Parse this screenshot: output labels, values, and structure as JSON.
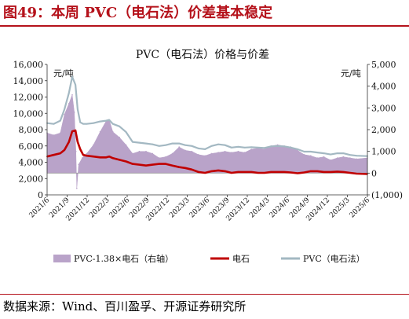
{
  "figure": {
    "title": "图49：本周 PVC（电石法）价差基本稳定",
    "source": "数据来源：Wind、百川盈孚、开源证券研究所"
  },
  "chart_data": {
    "type": "line",
    "title": "PVC（电石法）价格与价差",
    "y_left": {
      "unit_label": "元/吨",
      "ylim": [
        0,
        16000
      ],
      "ticks": [
        "0",
        "2,000",
        "4,000",
        "6,000",
        "8,000",
        "10,000",
        "12,000",
        "14,000",
        "16,000"
      ]
    },
    "y_right": {
      "unit_label": "元/吨",
      "ylim": [
        -1000,
        5000
      ],
      "ticks": [
        "(1,000)",
        "0",
        "1,000",
        "2,000",
        "3,000",
        "4,000",
        "5,000"
      ]
    },
    "x_ticks": [
      "2021/6",
      "2021/9",
      "2021/12",
      "2022/3",
      "2022/6",
      "2022/9",
      "2022/12",
      "2023/3",
      "2023/6",
      "2023/9",
      "2023/12",
      "2024/3",
      "2024/6",
      "2024/9",
      "2024/12",
      "2025/3",
      "2025/6"
    ],
    "x_range": [
      "2021-06-01",
      "2025-06-20"
    ],
    "grid": false,
    "legend_position": "bottom",
    "colors": {
      "spread": "#b9a3c9",
      "carbide": "#c00000",
      "pvc": "#a3b8c2"
    },
    "series": [
      {
        "name": "PVC-1.38×电石（右轴）",
        "kind": "area",
        "axis": "right",
        "points": [
          [
            "2021-06-01",
            1850
          ],
          [
            "2021-07-01",
            1750
          ],
          [
            "2021-08-01",
            1850
          ],
          [
            "2021-08-20",
            2700
          ],
          [
            "2021-09-10",
            3200
          ],
          [
            "2021-09-25",
            3600
          ],
          [
            "2021-10-05",
            2800
          ],
          [
            "2021-10-12",
            1000
          ],
          [
            "2021-10-16",
            -700
          ],
          [
            "2021-10-25",
            400
          ],
          [
            "2021-11-10",
            700
          ],
          [
            "2021-12-01",
            900
          ],
          [
            "2022-01-01",
            1300
          ],
          [
            "2022-02-01",
            1900
          ],
          [
            "2022-03-01",
            2400
          ],
          [
            "2022-03-15",
            2450
          ],
          [
            "2022-04-01",
            1900
          ],
          [
            "2022-05-01",
            1650
          ],
          [
            "2022-06-01",
            1300
          ],
          [
            "2022-07-01",
            900
          ],
          [
            "2022-08-01",
            1000
          ],
          [
            "2022-09-01",
            1000
          ],
          [
            "2022-10-01",
            900
          ],
          [
            "2022-11-01",
            700
          ],
          [
            "2022-12-01",
            750
          ],
          [
            "2023-01-01",
            900
          ],
          [
            "2023-02-01",
            1200
          ],
          [
            "2023-03-01",
            1050
          ],
          [
            "2023-04-01",
            1000
          ],
          [
            "2023-05-01",
            850
          ],
          [
            "2023-06-01",
            800
          ],
          [
            "2023-07-01",
            900
          ],
          [
            "2023-08-01",
            950
          ],
          [
            "2023-09-01",
            1000
          ],
          [
            "2023-10-01",
            950
          ],
          [
            "2023-11-01",
            1000
          ],
          [
            "2023-12-01",
            950
          ],
          [
            "2024-01-01",
            1100
          ],
          [
            "2024-02-01",
            1150
          ],
          [
            "2024-03-01",
            1100
          ],
          [
            "2024-04-01",
            1250
          ],
          [
            "2024-05-01",
            1300
          ],
          [
            "2024-06-01",
            1250
          ],
          [
            "2024-07-01",
            1200
          ],
          [
            "2024-08-01",
            1050
          ],
          [
            "2024-09-01",
            850
          ],
          [
            "2024-10-01",
            800
          ],
          [
            "2024-11-01",
            700
          ],
          [
            "2024-12-01",
            750
          ],
          [
            "2025-01-01",
            600
          ],
          [
            "2025-02-01",
            700
          ],
          [
            "2025-03-01",
            750
          ],
          [
            "2025-04-01",
            700
          ],
          [
            "2025-05-01",
            650
          ],
          [
            "2025-06-20",
            700
          ]
        ]
      },
      {
        "name": "电石",
        "kind": "line",
        "axis": "left",
        "points": [
          [
            "2021-06-01",
            4700
          ],
          [
            "2021-07-01",
            4900
          ],
          [
            "2021-08-01",
            5100
          ],
          [
            "2021-08-20",
            5500
          ],
          [
            "2021-09-10",
            6500
          ],
          [
            "2021-09-25",
            7800
          ],
          [
            "2021-10-10",
            7900
          ],
          [
            "2021-10-20",
            6500
          ],
          [
            "2021-11-01",
            5600
          ],
          [
            "2021-11-15",
            4900
          ],
          [
            "2021-12-01",
            4800
          ],
          [
            "2022-01-01",
            4700
          ],
          [
            "2022-02-01",
            4600
          ],
          [
            "2022-03-01",
            4600
          ],
          [
            "2022-03-15",
            4700
          ],
          [
            "2022-04-01",
            4500
          ],
          [
            "2022-05-01",
            4300
          ],
          [
            "2022-06-01",
            4100
          ],
          [
            "2022-07-01",
            3800
          ],
          [
            "2022-08-01",
            3700
          ],
          [
            "2022-09-01",
            3600
          ],
          [
            "2022-10-01",
            3700
          ],
          [
            "2022-11-01",
            3800
          ],
          [
            "2022-12-01",
            3800
          ],
          [
            "2023-01-01",
            3600
          ],
          [
            "2023-02-01",
            3400
          ],
          [
            "2023-03-01",
            3300
          ],
          [
            "2023-04-01",
            3100
          ],
          [
            "2023-05-01",
            2800
          ],
          [
            "2023-06-01",
            2700
          ],
          [
            "2023-07-01",
            2900
          ],
          [
            "2023-08-01",
            3000
          ],
          [
            "2023-09-01",
            2900
          ],
          [
            "2023-10-01",
            2700
          ],
          [
            "2023-11-01",
            2800
          ],
          [
            "2023-12-01",
            2800
          ],
          [
            "2024-01-01",
            2800
          ],
          [
            "2024-02-01",
            2700
          ],
          [
            "2024-03-01",
            2700
          ],
          [
            "2024-04-01",
            2800
          ],
          [
            "2024-05-01",
            2800
          ],
          [
            "2024-06-01",
            2800
          ],
          [
            "2024-07-01",
            2750
          ],
          [
            "2024-08-01",
            2650
          ],
          [
            "2024-09-01",
            2750
          ],
          [
            "2024-10-01",
            2900
          ],
          [
            "2024-11-01",
            2900
          ],
          [
            "2024-12-01",
            2800
          ],
          [
            "2025-01-01",
            2800
          ],
          [
            "2025-02-01",
            2850
          ],
          [
            "2025-03-01",
            2800
          ],
          [
            "2025-04-01",
            2700
          ],
          [
            "2025-05-01",
            2600
          ],
          [
            "2025-06-20",
            2550
          ]
        ]
      },
      {
        "name": "PVC（电石法）",
        "kind": "line",
        "axis": "left",
        "points": [
          [
            "2021-06-01",
            8800
          ],
          [
            "2021-07-01",
            8700
          ],
          [
            "2021-08-01",
            9100
          ],
          [
            "2021-08-20",
            10500
          ],
          [
            "2021-09-10",
            12500
          ],
          [
            "2021-09-25",
            14500
          ],
          [
            "2021-10-10",
            13500
          ],
          [
            "2021-10-20",
            10500
          ],
          [
            "2021-11-01",
            8900
          ],
          [
            "2021-11-15",
            8700
          ],
          [
            "2021-12-01",
            8700
          ],
          [
            "2022-01-01",
            8800
          ],
          [
            "2022-02-01",
            9000
          ],
          [
            "2022-03-01",
            9100
          ],
          [
            "2022-03-15",
            9200
          ],
          [
            "2022-04-01",
            8700
          ],
          [
            "2022-05-01",
            8400
          ],
          [
            "2022-06-01",
            7700
          ],
          [
            "2022-07-01",
            6500
          ],
          [
            "2022-08-01",
            6400
          ],
          [
            "2022-09-01",
            6300
          ],
          [
            "2022-10-01",
            6200
          ],
          [
            "2022-11-01",
            6000
          ],
          [
            "2022-12-01",
            6100
          ],
          [
            "2023-01-01",
            6300
          ],
          [
            "2023-02-01",
            6300
          ],
          [
            "2023-03-01",
            6100
          ],
          [
            "2023-04-01",
            6000
          ],
          [
            "2023-05-01",
            5700
          ],
          [
            "2023-06-01",
            5600
          ],
          [
            "2023-07-01",
            6000
          ],
          [
            "2023-08-01",
            6200
          ],
          [
            "2023-09-01",
            6100
          ],
          [
            "2023-10-01",
            5800
          ],
          [
            "2023-11-01",
            5900
          ],
          [
            "2023-12-01",
            5800
          ],
          [
            "2024-01-01",
            5850
          ],
          [
            "2024-02-01",
            5800
          ],
          [
            "2024-03-01",
            5750
          ],
          [
            "2024-04-01",
            5950
          ],
          [
            "2024-05-01",
            6000
          ],
          [
            "2024-06-01",
            5950
          ],
          [
            "2024-07-01",
            5800
          ],
          [
            "2024-08-01",
            5600
          ],
          [
            "2024-09-01",
            5300
          ],
          [
            "2024-10-01",
            5300
          ],
          [
            "2024-11-01",
            5200
          ],
          [
            "2024-12-01",
            5100
          ],
          [
            "2025-01-01",
            4950
          ],
          [
            "2025-02-01",
            5100
          ],
          [
            "2025-03-01",
            5100
          ],
          [
            "2025-04-01",
            4900
          ],
          [
            "2025-05-01",
            4800
          ],
          [
            "2025-06-20",
            4750
          ]
        ]
      }
    ]
  }
}
